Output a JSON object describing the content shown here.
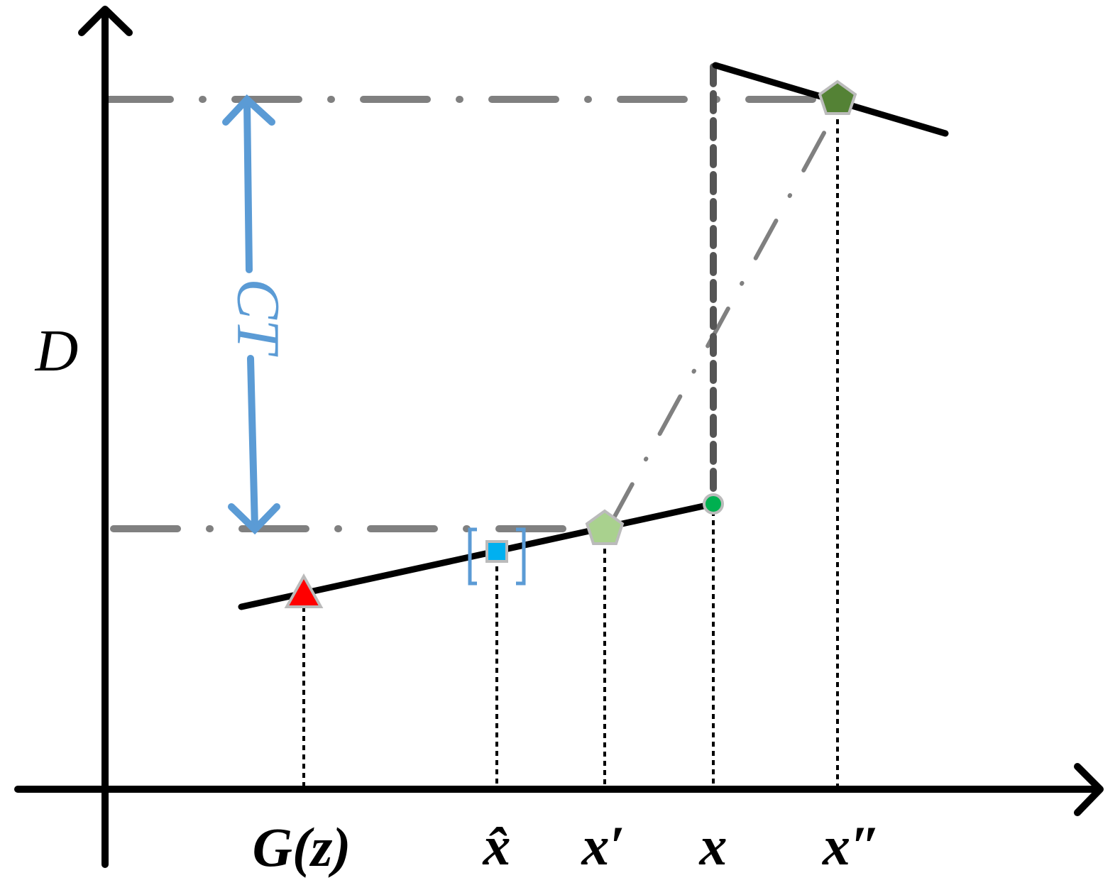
{
  "axis_label": "D",
  "arrow_label": "CT",
  "x_labels": [
    "G(z)",
    "x̂",
    "x′",
    "x",
    "x″"
  ]
}
